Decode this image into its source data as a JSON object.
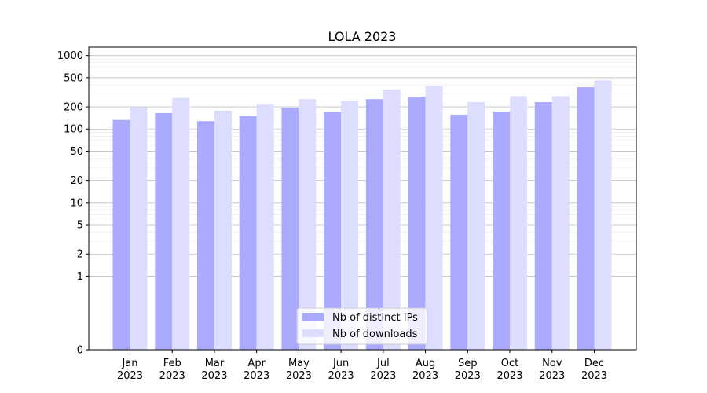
{
  "chart_data": {
    "type": "bar",
    "title": "LOLA 2023",
    "xlabel": "",
    "ylabel": "",
    "scale": "symlog",
    "ylim": [
      0,
      1300
    ],
    "yticks": [
      0,
      1,
      2,
      5,
      10,
      20,
      50,
      100,
      200,
      500,
      1000
    ],
    "grid": true,
    "legend_position": "lower-center",
    "categories": [
      [
        "Jan",
        "2023"
      ],
      [
        "Feb",
        "2023"
      ],
      [
        "Mar",
        "2023"
      ],
      [
        "Apr",
        "2023"
      ],
      [
        "May",
        "2023"
      ],
      [
        "Jun",
        "2023"
      ],
      [
        "Jul",
        "2023"
      ],
      [
        "Aug",
        "2023"
      ],
      [
        "Sep",
        "2023"
      ],
      [
        "Oct",
        "2023"
      ],
      [
        "Nov",
        "2023"
      ],
      [
        "Dec",
        "2023"
      ]
    ],
    "series": [
      {
        "name": "Nb of distinct IPs",
        "color": "#aaaaff",
        "values": [
          133,
          165,
          128,
          150,
          195,
          170,
          255,
          275,
          157,
          173,
          232,
          370
        ]
      },
      {
        "name": "Nb of downloads",
        "color": "#ddddff",
        "values": [
          197,
          265,
          178,
          220,
          255,
          245,
          345,
          385,
          233,
          280,
          280,
          460
        ]
      }
    ]
  }
}
